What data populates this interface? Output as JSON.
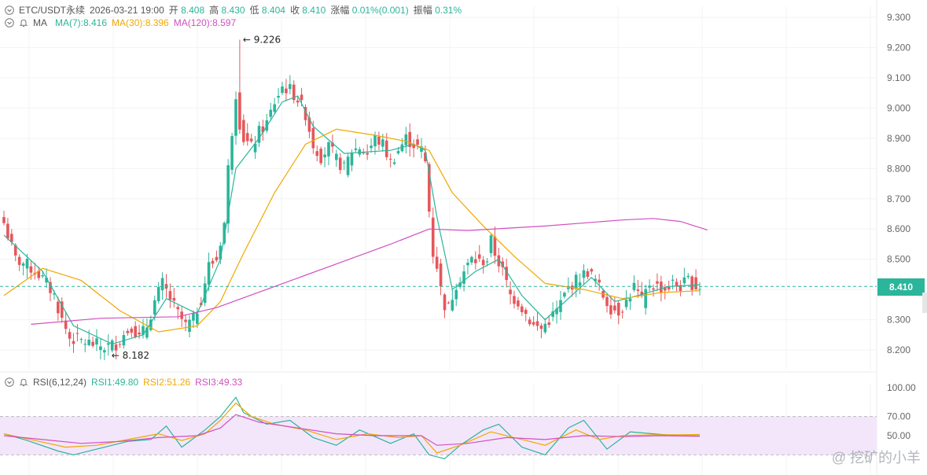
{
  "header": {
    "symbol": "ETC/USDT永续",
    "datetime": "2026-03-21 19:00",
    "open_label": "开",
    "open": "8.408",
    "high_label": "高",
    "high": "8.430",
    "low_label": "低",
    "low": "8.404",
    "close_label": "收",
    "close": "8.410",
    "change_label": "涨幅",
    "change": "0.01%(0.001)",
    "amp_label": "振幅",
    "amp": "0.31%"
  },
  "ma_legend": {
    "title": "MA",
    "ma7": "MA(7):8.416",
    "ma30": "MA(30):8.396",
    "ma120": "MA(120):8.597"
  },
  "rsi_legend": {
    "title": "RSI(6,12,24)",
    "rsi1": "RSI1:49.80",
    "rsi2": "RSI2:51.26",
    "rsi3": "RSI3:49.33"
  },
  "last_price": "8.410",
  "watermark": "@ 挖矿的小羊",
  "colors": {
    "up": "#2bb59a",
    "down": "#e5575b",
    "ma7": "#2bb59a",
    "ma30": "#f0a800",
    "ma120": "#d24fc0",
    "rsi_band": "#f3e6fb"
  },
  "chart_data": [
    {
      "type": "candlestick",
      "title": "ETC/USDT永续",
      "y_ticks": [
        "9.300",
        "9.200",
        "9.100",
        "9.000",
        "8.900",
        "8.800",
        "8.700",
        "8.600",
        "8.500",
        "8.400",
        "8.300",
        "8.200"
      ],
      "ylim": [
        8.15,
        9.31
      ],
      "annotations": [
        {
          "text": "9.226",
          "candle": 61,
          "value": 9.226
        },
        {
          "text": "8.182",
          "candle": 27,
          "value": 8.182
        }
      ],
      "current_price": 8.41,
      "anchors": [
        [
          0,
          8.62
        ],
        [
          3,
          8.5
        ],
        [
          6,
          8.48
        ],
        [
          9,
          8.45
        ],
        [
          11,
          8.42
        ],
        [
          13,
          8.38
        ],
        [
          15,
          8.3
        ],
        [
          17,
          8.24
        ],
        [
          20,
          8.23
        ],
        [
          23,
          8.22
        ],
        [
          26,
          8.21
        ],
        [
          29,
          8.22
        ],
        [
          31,
          8.25
        ],
        [
          33,
          8.28
        ],
        [
          35,
          8.24
        ],
        [
          37,
          8.28
        ],
        [
          39,
          8.36
        ],
        [
          41,
          8.42
        ],
        [
          43,
          8.37
        ],
        [
          45,
          8.32
        ],
        [
          47,
          8.28
        ],
        [
          49,
          8.3
        ],
        [
          51,
          8.37
        ],
        [
          53,
          8.48
        ],
        [
          55,
          8.5
        ],
        [
          57,
          8.62
        ],
        [
          58,
          8.8
        ],
        [
          60,
          9.05
        ],
        [
          61,
          8.95
        ],
        [
          62,
          8.9
        ],
        [
          64,
          8.87
        ],
        [
          66,
          8.92
        ],
        [
          68,
          8.95
        ],
        [
          70,
          9.02
        ],
        [
          72,
          9.07
        ],
        [
          74,
          9.06
        ],
        [
          76,
          9.03
        ],
        [
          78,
          8.98
        ],
        [
          80,
          8.88
        ],
        [
          82,
          8.84
        ],
        [
          84,
          8.87
        ],
        [
          86,
          8.83
        ],
        [
          88,
          8.8
        ],
        [
          90,
          8.86
        ],
        [
          92,
          8.87
        ],
        [
          94,
          8.85
        ],
        [
          96,
          8.9
        ],
        [
          98,
          8.88
        ],
        [
          100,
          8.82
        ],
        [
          102,
          8.86
        ],
        [
          104,
          8.9
        ],
        [
          106,
          8.88
        ],
        [
          108,
          8.86
        ],
        [
          109,
          8.82
        ],
        [
          110,
          8.66
        ],
        [
          111,
          8.52
        ],
        [
          112,
          8.48
        ],
        [
          113,
          8.4
        ],
        [
          114,
          8.35
        ],
        [
          115,
          8.34
        ],
        [
          117,
          8.42
        ],
        [
          119,
          8.46
        ],
        [
          121,
          8.5
        ],
        [
          123,
          8.49
        ],
        [
          125,
          8.5
        ],
        [
          126,
          8.56
        ],
        [
          127,
          8.52
        ],
        [
          129,
          8.46
        ],
        [
          131,
          8.38
        ],
        [
          133,
          8.36
        ],
        [
          135,
          8.32
        ],
        [
          137,
          8.28
        ],
        [
          139,
          8.27
        ],
        [
          141,
          8.3
        ],
        [
          143,
          8.33
        ],
        [
          145,
          8.38
        ],
        [
          147,
          8.42
        ],
        [
          149,
          8.44
        ],
        [
          151,
          8.46
        ],
        [
          153,
          8.43
        ],
        [
          155,
          8.38
        ],
        [
          157,
          8.34
        ],
        [
          159,
          8.33
        ],
        [
          161,
          8.36
        ],
        [
          163,
          8.41
        ],
        [
          165,
          8.36
        ],
        [
          167,
          8.42
        ],
        [
          169,
          8.41
        ],
        [
          171,
          8.4
        ],
        [
          173,
          8.42
        ],
        [
          175,
          8.41
        ],
        [
          177,
          8.43
        ],
        [
          179,
          8.41
        ],
        [
          180,
          8.41
        ]
      ],
      "ma_series": [
        {
          "name": "MA(7)",
          "last": 8.416,
          "points": [
            [
              0,
              8.58
            ],
            [
              10,
              8.46
            ],
            [
              18,
              8.28
            ],
            [
              28,
              8.22
            ],
            [
              36,
              8.25
            ],
            [
              42,
              8.37
            ],
            [
              50,
              8.32
            ],
            [
              56,
              8.5
            ],
            [
              60,
              8.8
            ],
            [
              66,
              8.9
            ],
            [
              72,
              9.02
            ],
            [
              76,
              9.04
            ],
            [
              80,
              8.94
            ],
            [
              88,
              8.85
            ],
            [
              100,
              8.86
            ],
            [
              106,
              8.88
            ],
            [
              109,
              8.86
            ],
            [
              112,
              8.64
            ],
            [
              116,
              8.4
            ],
            [
              122,
              8.46
            ],
            [
              128,
              8.5
            ],
            [
              134,
              8.38
            ],
            [
              140,
              8.3
            ],
            [
              146,
              8.37
            ],
            [
              152,
              8.44
            ],
            [
              158,
              8.36
            ],
            [
              164,
              8.38
            ],
            [
              172,
              8.41
            ],
            [
              180,
              8.416
            ]
          ]
        },
        {
          "name": "MA(30)",
          "last": 8.396,
          "points": [
            [
              0,
              8.38
            ],
            [
              10,
              8.47
            ],
            [
              20,
              8.43
            ],
            [
              30,
              8.33
            ],
            [
              40,
              8.26
            ],
            [
              50,
              8.28
            ],
            [
              56,
              8.36
            ],
            [
              62,
              8.52
            ],
            [
              70,
              8.72
            ],
            [
              78,
              8.88
            ],
            [
              86,
              8.93
            ],
            [
              96,
              8.91
            ],
            [
              104,
              8.89
            ],
            [
              110,
              8.86
            ],
            [
              116,
              8.72
            ],
            [
              124,
              8.61
            ],
            [
              132,
              8.51
            ],
            [
              140,
              8.42
            ],
            [
              150,
              8.4
            ],
            [
              160,
              8.37
            ],
            [
              170,
              8.39
            ],
            [
              180,
              8.396
            ]
          ]
        },
        {
          "name": "MA(120)",
          "last": 8.597,
          "points": [
            [
              7,
              8.285
            ],
            [
              25,
              8.305
            ],
            [
              45,
              8.31
            ],
            [
              55,
              8.34
            ],
            [
              70,
              8.41
            ],
            [
              85,
              8.48
            ],
            [
              100,
              8.55
            ],
            [
              110,
              8.6
            ],
            [
              120,
              8.595
            ],
            [
              140,
              8.61
            ],
            [
              160,
              8.63
            ],
            [
              168,
              8.635
            ],
            [
              175,
              8.625
            ],
            [
              182,
              8.597
            ]
          ]
        }
      ]
    },
    {
      "type": "line",
      "title": "RSI(6,12,24)",
      "y_ticks": [
        "100.00",
        "70.00",
        "50.00"
      ],
      "band": [
        30,
        70
      ],
      "series": [
        {
          "name": "RSI1",
          "last": 49.8,
          "points": [
            [
              0,
              52
            ],
            [
              6,
              45
            ],
            [
              14,
              34
            ],
            [
              18,
              30
            ],
            [
              24,
              36
            ],
            [
              32,
              44
            ],
            [
              38,
              46
            ],
            [
              42,
              60
            ],
            [
              46,
              38
            ],
            [
              52,
              56
            ],
            [
              56,
              70
            ],
            [
              60,
              90
            ],
            [
              62,
              74
            ],
            [
              68,
              62
            ],
            [
              74,
              66
            ],
            [
              80,
              48
            ],
            [
              86,
              40
            ],
            [
              92,
              56
            ],
            [
              100,
              42
            ],
            [
              106,
              52
            ],
            [
              110,
              30
            ],
            [
              114,
              26
            ],
            [
              118,
              40
            ],
            [
              124,
              56
            ],
            [
              128,
              62
            ],
            [
              134,
              38
            ],
            [
              140,
              30
            ],
            [
              146,
              58
            ],
            [
              150,
              66
            ],
            [
              156,
              36
            ],
            [
              162,
              54
            ],
            [
              168,
              52
            ],
            [
              174,
              50
            ],
            [
              180,
              49.8
            ]
          ]
        },
        {
          "name": "RSI2",
          "last": 51.26,
          "points": [
            [
              0,
              52
            ],
            [
              8,
              45
            ],
            [
              16,
              38
            ],
            [
              24,
              40
            ],
            [
              32,
              46
            ],
            [
              40,
              52
            ],
            [
              46,
              45
            ],
            [
              52,
              52
            ],
            [
              56,
              66
            ],
            [
              60,
              84
            ],
            [
              64,
              70
            ],
            [
              70,
              62
            ],
            [
              78,
              56
            ],
            [
              86,
              46
            ],
            [
              94,
              52
            ],
            [
              102,
              48
            ],
            [
              108,
              50
            ],
            [
              112,
              32
            ],
            [
              118,
              40
            ],
            [
              126,
              54
            ],
            [
              132,
              48
            ],
            [
              140,
              40
            ],
            [
              148,
              56
            ],
            [
              154,
              46
            ],
            [
              160,
              50
            ],
            [
              168,
              51
            ],
            [
              174,
              51
            ],
            [
              180,
              51.26
            ]
          ]
        },
        {
          "name": "RSI3",
          "last": 49.33,
          "points": [
            [
              0,
              50
            ],
            [
              10,
              46
            ],
            [
              20,
              42
            ],
            [
              30,
              44
            ],
            [
              40,
              48
            ],
            [
              50,
              50
            ],
            [
              56,
              58
            ],
            [
              60,
              72
            ],
            [
              66,
              64
            ],
            [
              76,
              58
            ],
            [
              86,
              52
            ],
            [
              96,
              50
            ],
            [
              108,
              50
            ],
            [
              112,
              40
            ],
            [
              120,
              42
            ],
            [
              130,
              48
            ],
            [
              140,
              46
            ],
            [
              150,
              50
            ],
            [
              160,
              49
            ],
            [
              170,
              50
            ],
            [
              180,
              49.33
            ]
          ]
        }
      ]
    }
  ]
}
